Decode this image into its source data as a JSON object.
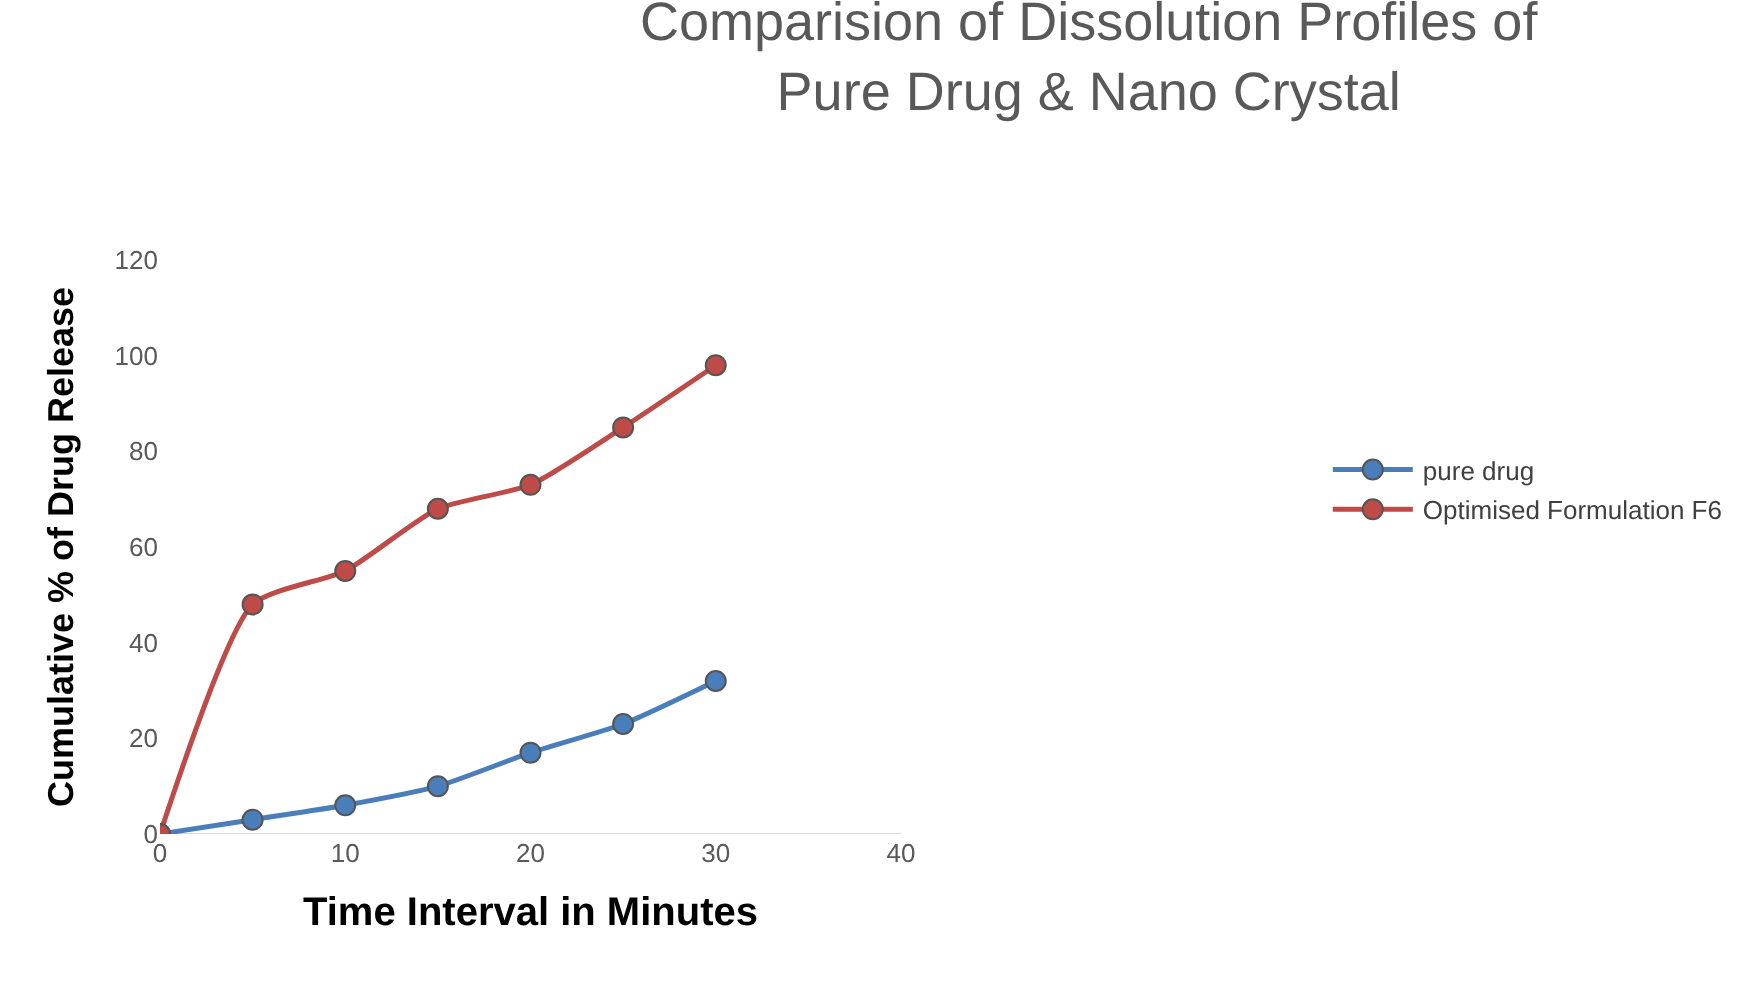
{
  "chart_data": {
    "type": "line",
    "title": "Comparision of Dissolution Profiles of Pure Drug & Nano Crystal",
    "xlabel": "Time Interval in Minutes",
    "ylabel": "Cumulative % of Drug Release",
    "x": [
      0,
      5,
      10,
      15,
      20,
      25,
      30
    ],
    "series": [
      {
        "name": "pure drug",
        "color": "#4a7ebb",
        "values": [
          0,
          3,
          6,
          10,
          17,
          23,
          32
        ]
      },
      {
        "name": "Optimised Formulation F6",
        "color": "#be4b48",
        "values": [
          0,
          48,
          55,
          68,
          73,
          85,
          98
        ]
      }
    ],
    "xlim": [
      0,
      40
    ],
    "xticks": [
      0,
      10,
      20,
      30,
      40
    ],
    "ylim": [
      0,
      120
    ],
    "yticks": [
      0,
      20,
      40,
      60,
      80,
      100,
      120
    ],
    "grid": false,
    "legend": "right",
    "marker": "circle",
    "line_style": "solid"
  }
}
